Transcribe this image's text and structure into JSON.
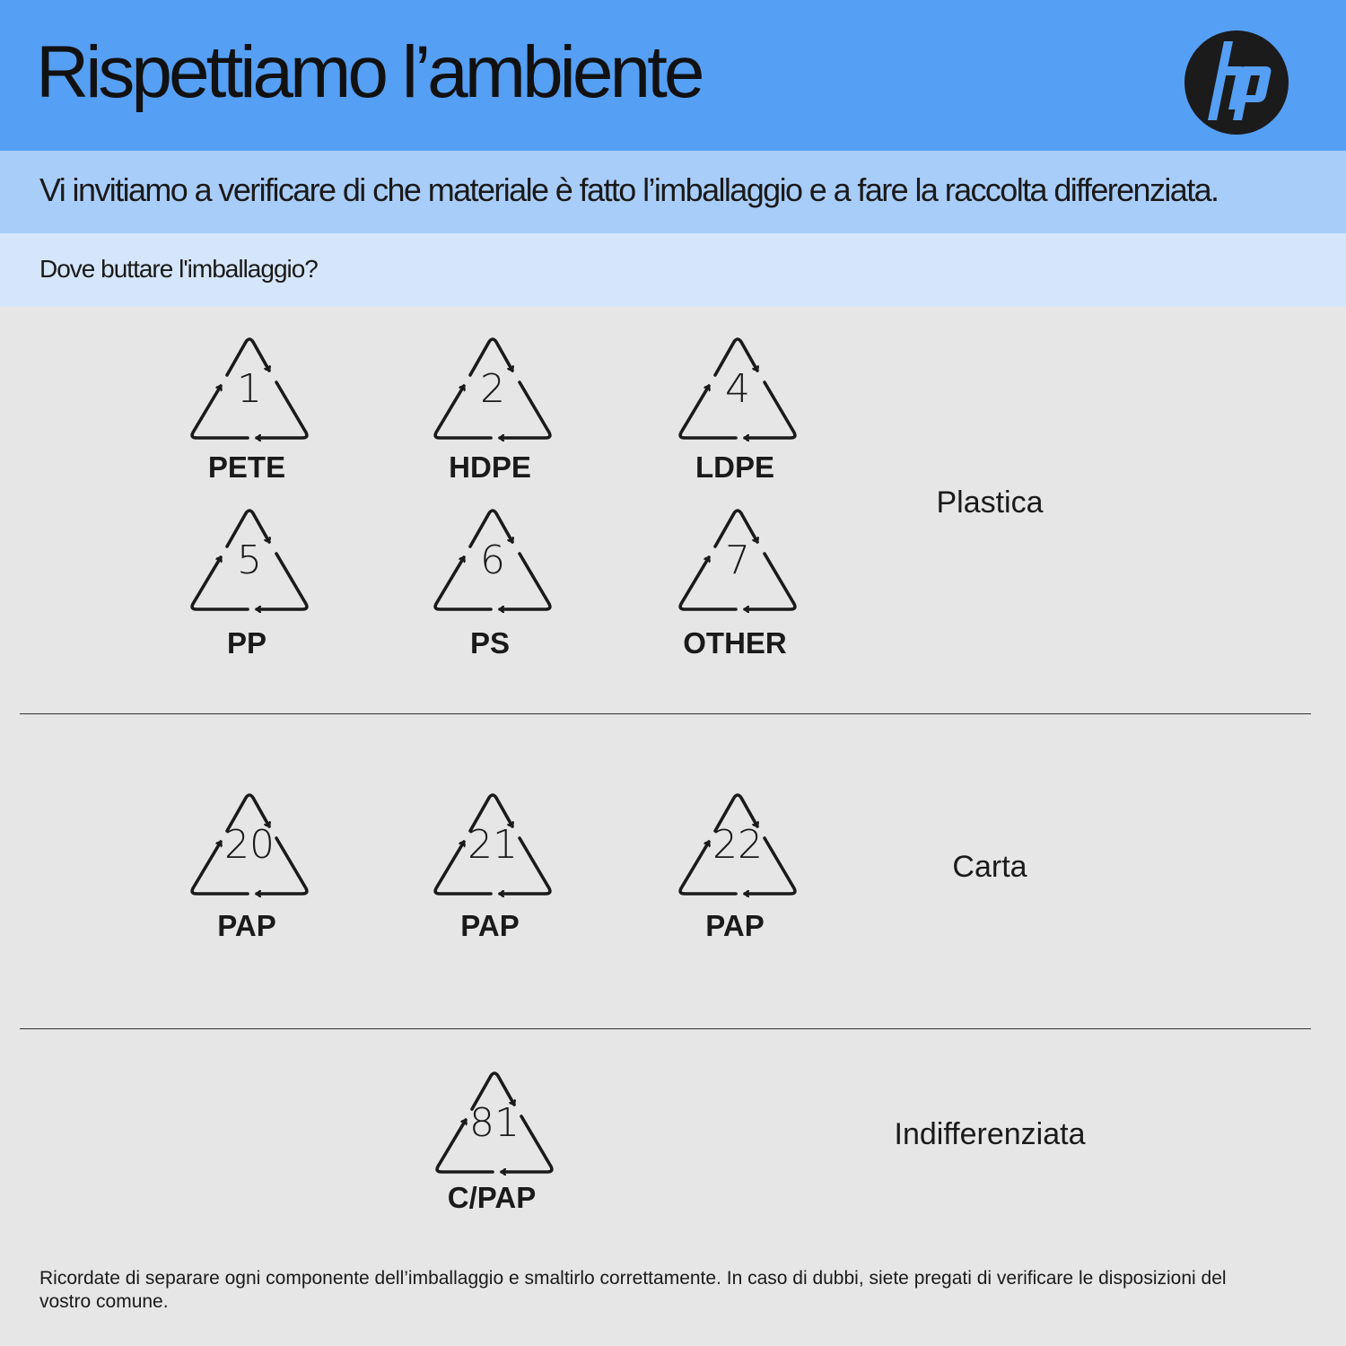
{
  "header": {
    "title": "Rispettiamo l’ambiente",
    "logo_text": "hp",
    "color": "#559ff5"
  },
  "subtitle": "Vi invitiamo a verificare di che materiale è fatto l’imballaggio e a fare la raccolta differenziata.",
  "question": "Dove buttare l'imballaggio?",
  "sections": [
    {
      "category": "Plastica",
      "items": [
        {
          "number": "1",
          "label": "PETE"
        },
        {
          "number": "2",
          "label": "HDPE"
        },
        {
          "number": "4",
          "label": "LDPE"
        },
        {
          "number": "5",
          "label": "PP"
        },
        {
          "number": "6",
          "label": "PS"
        },
        {
          "number": "7",
          "label": "OTHER"
        }
      ]
    },
    {
      "category": "Carta",
      "items": [
        {
          "number": "20",
          "label": "PAP"
        },
        {
          "number": "21",
          "label": "PAP"
        },
        {
          "number": "22",
          "label": "PAP"
        }
      ]
    },
    {
      "category": "Indifferenziata",
      "items": [
        {
          "number": "81",
          "label": "C/PAP"
        }
      ]
    }
  ],
  "footer": "Ricordate di separare ogni componente dell’imballaggio e smaltirlo correttamente. In caso di dubbi, siete pregati di verificare le disposizioni del vostro comune."
}
